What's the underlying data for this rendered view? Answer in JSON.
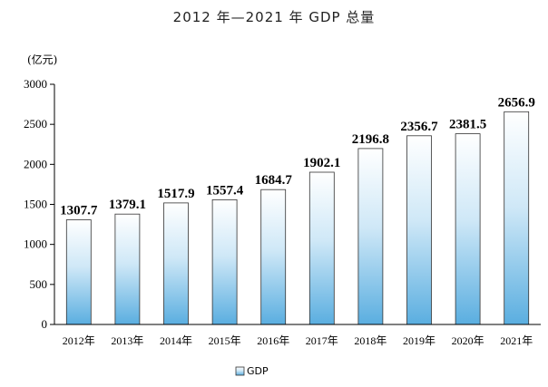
{
  "chart_data": {
    "type": "bar",
    "title": "2012 年—2021 年 GDP 总量",
    "unit": "(亿元)",
    "categories": [
      "2012年",
      "2013年",
      "2014年",
      "2015年",
      "2016年",
      "2017年",
      "2018年",
      "2019年",
      "2020年",
      "2021年"
    ],
    "series": [
      {
        "name": "GDP",
        "values": [
          1307.7,
          1379.1,
          1517.9,
          1557.4,
          1684.7,
          1902.1,
          2196.8,
          2356.7,
          2381.5,
          2656.9
        ],
        "labels": [
          "1307.7",
          "1379.1",
          "1517.9",
          "1557.4",
          "1684.7",
          "1902.1",
          "2196.8",
          "2356.7",
          "2381.5",
          "2656.9"
        ]
      }
    ],
    "yticks": [
      "0",
      "500",
      "1000",
      "1500",
      "2000",
      "2500",
      "3000"
    ],
    "ylim": [
      0,
      3000
    ],
    "grid": false,
    "legend": "bottom-left",
    "colors": {
      "bar_top": "#ffffff",
      "bar_bottom": "#5aaee0",
      "bar_border": "#333333"
    }
  }
}
